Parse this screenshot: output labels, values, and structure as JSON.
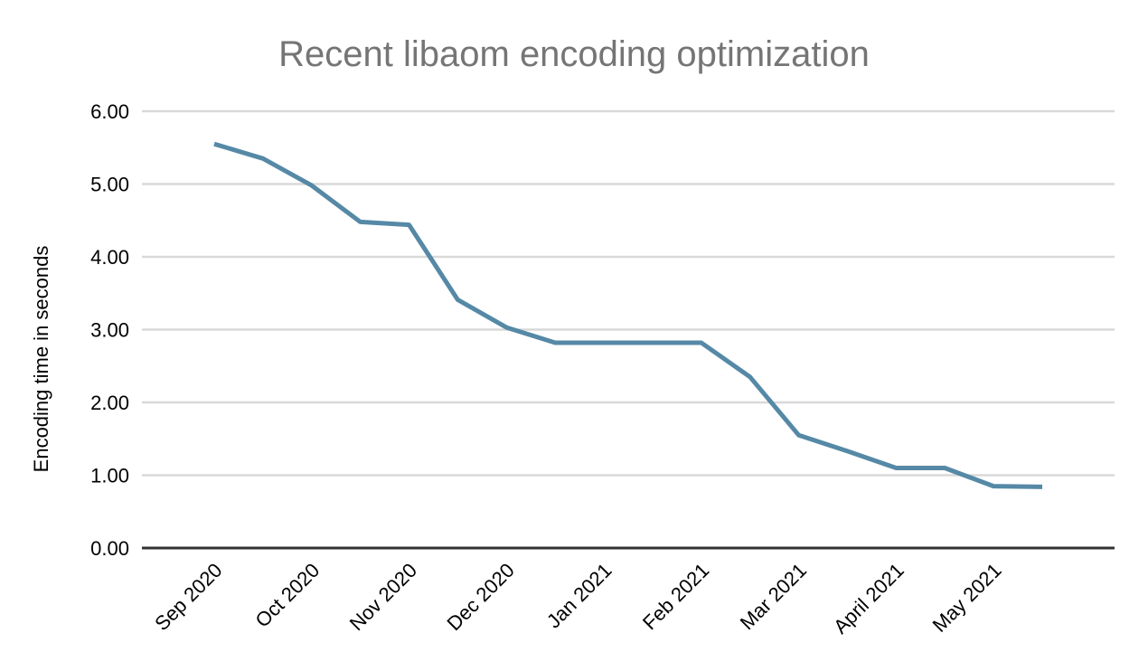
{
  "chart_data": {
    "type": "line",
    "title": "Recent libaom encoding optimization",
    "xlabel": "",
    "ylabel": "Encoding time in seconds",
    "x_tick_labels": [
      "Sep 2020",
      "Oct 2020",
      "Nov 2020",
      "Dec 2020",
      "Jan 2021",
      "Feb 2021",
      "Mar 2021",
      "April 2021",
      "May 2021"
    ],
    "points_per_x_tick": 2,
    "y_ticks": [
      0,
      1,
      2,
      3,
      4,
      5,
      6
    ],
    "y_tick_labels": [
      "0.00",
      "1.00",
      "2.00",
      "3.00",
      "4.00",
      "5.00",
      "6.00"
    ],
    "ylim": [
      0,
      6
    ],
    "grid": true,
    "legend": "none",
    "series": [
      {
        "color": "#5589a6",
        "values": [
          5.55,
          5.35,
          4.98,
          4.48,
          4.44,
          3.41,
          3.03,
          2.82,
          2.82,
          2.82,
          2.82,
          2.35,
          1.55,
          1.33,
          1.1,
          1.1,
          0.85,
          0.84
        ]
      }
    ],
    "colors": {
      "title": "#757575",
      "tick_label": "#000000",
      "axis_title": "#000000",
      "gridline": "#d9d9d9",
      "axis_line": "#333333",
      "background": "#ffffff"
    }
  }
}
